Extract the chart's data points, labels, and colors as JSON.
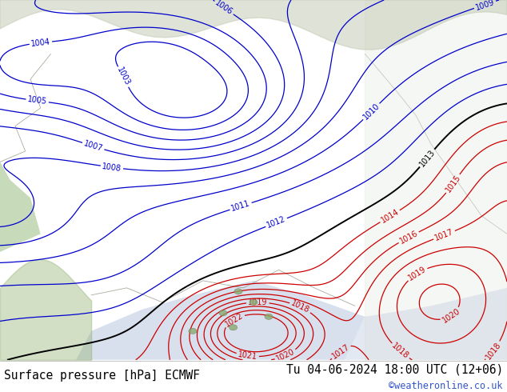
{
  "title_left": "Surface pressure [hPa] ECMWF",
  "title_right": "Tu 04-06-2024 18:00 UTC (12+06)",
  "watermark": "©weatheronline.co.uk",
  "land_color": "#b8dba0",
  "sea_color": "#c8d4e8",
  "mountain_color": "#a0b888",
  "contour_color_blue": "#0000cc",
  "contour_color_black": "#000000",
  "contour_color_red": "#cc0000",
  "footer_bg": "#ffffff",
  "title_fontsize": 10.5,
  "watermark_color": "#3355cc",
  "label_fontsize": 7
}
